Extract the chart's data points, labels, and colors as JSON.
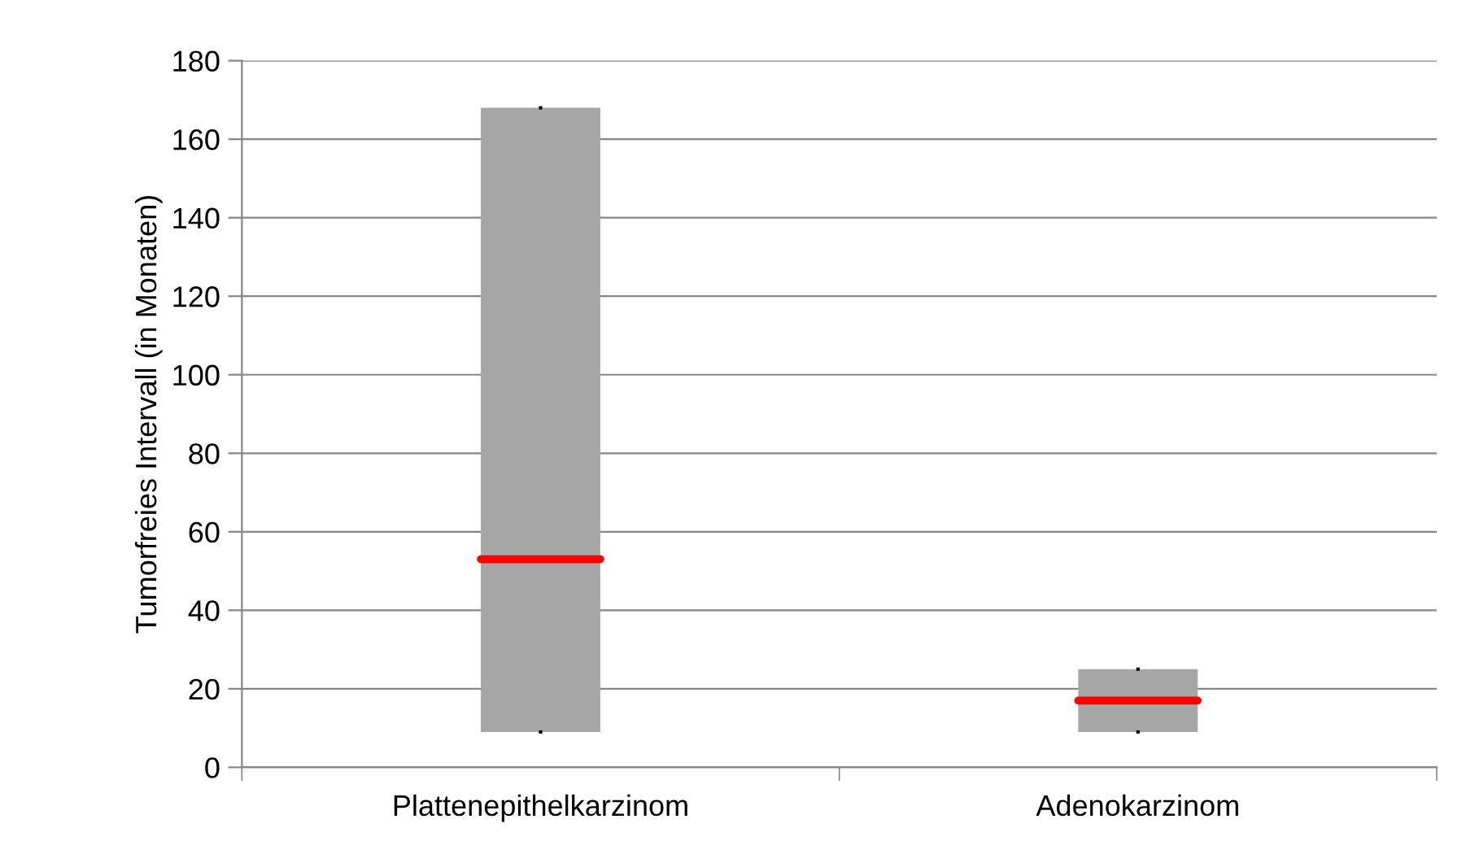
{
  "chart_data": {
    "type": "box",
    "ylabel": "Tumorfreies Intervall (in Monaten)",
    "categories": [
      "Plattenepithelkarzinom",
      "Adenokarzinom"
    ],
    "boxes": [
      {
        "low": 9,
        "q1": 9,
        "median": 53,
        "q3": 168,
        "high": 168
      },
      {
        "low": 9,
        "q1": 9,
        "median": 17,
        "q3": 25,
        "high": 25
      }
    ],
    "color": "#a6a6a6",
    "ylim": [
      0,
      180
    ],
    "yticks": [
      0,
      20,
      40,
      60,
      80,
      100,
      120,
      140,
      160,
      180
    ],
    "grid": "y"
  }
}
